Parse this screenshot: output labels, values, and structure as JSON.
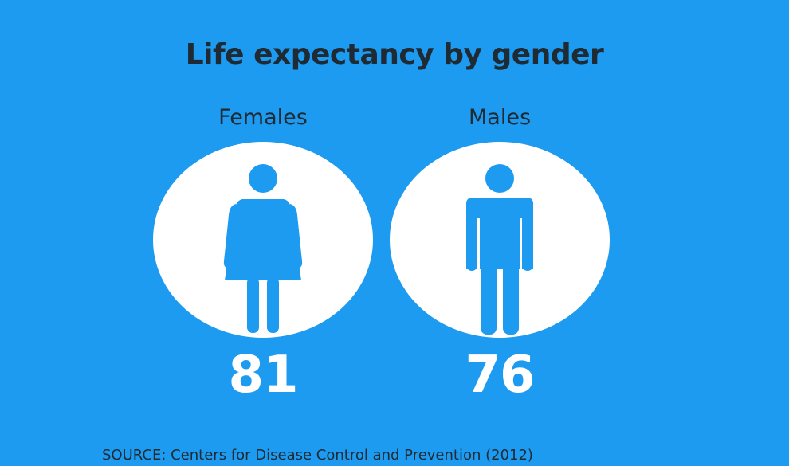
{
  "title": "Life expectancy by gender",
  "source": "SOURCE: Centers for Disease Control and Prevention (2012)",
  "colors": {
    "background": "#1c9bf0",
    "circle": "#ffffff",
    "figure": "#1c9bf0",
    "text_dark": "#1f2a33",
    "value_text": "#ffffff"
  },
  "groups": [
    {
      "label": "Females",
      "value": "81",
      "icon": "female-figure-icon"
    },
    {
      "label": "Males",
      "value": "76",
      "icon": "male-figure-icon"
    }
  ]
}
